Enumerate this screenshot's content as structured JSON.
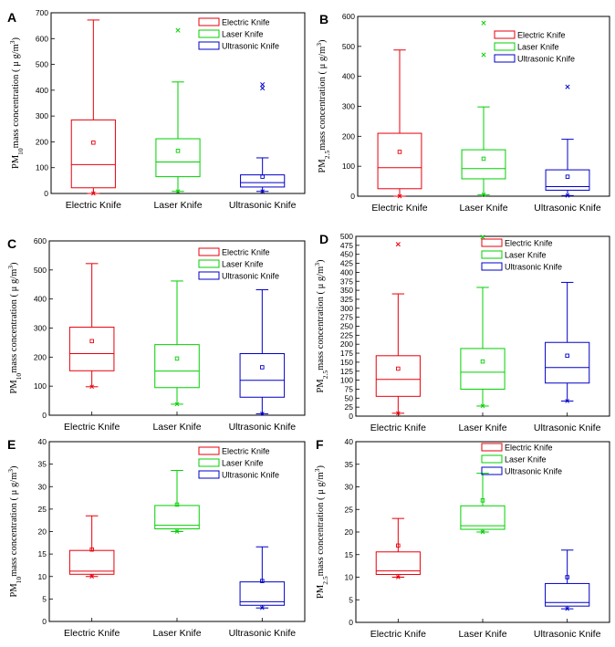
{
  "colors": {
    "Electric Knife": "#e8000b",
    "Laser Knife": "#00d000",
    "Ultrasonic Knife": "#0000c8"
  },
  "chart_data": [
    {
      "type": "box",
      "letter": "A",
      "ylabel": {
        "pre": "PM",
        "sub": "10",
        "post": "mass concentration ( μ g/m",
        "sup": "3",
        "end": ")"
      },
      "ylim": [
        0,
        700
      ],
      "yticks": [
        0,
        100,
        200,
        300,
        400,
        500,
        600,
        700
      ],
      "categories": [
        "Electric Knife",
        "Laser Knife",
        "Ultrasonic Knife"
      ],
      "legend": [
        "Electric Knife",
        "Laser Knife",
        "Ultrasonic Knife"
      ],
      "boxes": [
        {
          "name": "Electric Knife",
          "min": 0,
          "q1": 22,
          "median": 112,
          "q3": 285,
          "max": 672,
          "mean": 197,
          "outliers": []
        },
        {
          "name": "Laser Knife",
          "min": 8,
          "q1": 65,
          "median": 122,
          "q3": 212,
          "max": 432,
          "mean": 165,
          "outliers": [
            632
          ]
        },
        {
          "name": "Ultrasonic Knife",
          "min": 8,
          "q1": 25,
          "median": 42,
          "q3": 72,
          "max": 138,
          "mean": 65,
          "outliers": [
            408,
            422
          ]
        }
      ]
    },
    {
      "type": "box",
      "letter": "B",
      "ylabel": {
        "pre": "PM",
        "sub": "2.5",
        "post": "mass concentration ( μ g/m",
        "sup": "3",
        "end": ")"
      },
      "ylim": [
        0,
        600
      ],
      "yticks": [
        0,
        100,
        200,
        300,
        400,
        500,
        600
      ],
      "categories": [
        "Electric Knife",
        "Laser Knife",
        "Ultrasonic Knife"
      ],
      "legend": [
        "Electric Knife",
        "Laser Knife",
        "Ultrasonic Knife"
      ],
      "boxes": [
        {
          "name": "Electric Knife",
          "min": 0,
          "q1": 25,
          "median": 95,
          "q3": 210,
          "max": 488,
          "mean": 148,
          "outliers": []
        },
        {
          "name": "Laser Knife",
          "min": 5,
          "q1": 58,
          "median": 92,
          "q3": 155,
          "max": 298,
          "mean": 125,
          "outliers": [
            472,
            578
          ]
        },
        {
          "name": "Ultrasonic Knife",
          "min": 2,
          "q1": 20,
          "median": 32,
          "q3": 88,
          "max": 190,
          "mean": 65,
          "outliers": [
            365
          ]
        }
      ]
    },
    {
      "type": "box",
      "letter": "C",
      "ylabel": {
        "pre": "PM",
        "sub": "10",
        "post": "mass concentration ( μ g/m",
        "sup": "3",
        "end": ")"
      },
      "ylim": [
        0,
        600
      ],
      "yticks": [
        0,
        100,
        200,
        300,
        400,
        500,
        600
      ],
      "categories": [
        "Electric Knife",
        "Laser Knife",
        "Ultrasonic Knife"
      ],
      "legend": [
        "Electric Knife",
        "Laser Knife",
        "Ultrasonic Knife"
      ],
      "boxes": [
        {
          "name": "Electric Knife",
          "min": 98,
          "q1": 153,
          "median": 212,
          "q3": 303,
          "max": 522,
          "mean": 255,
          "outliers": []
        },
        {
          "name": "Laser Knife",
          "min": 38,
          "q1": 95,
          "median": 152,
          "q3": 243,
          "max": 462,
          "mean": 195,
          "outliers": []
        },
        {
          "name": "Ultrasonic Knife",
          "min": 5,
          "q1": 62,
          "median": 120,
          "q3": 212,
          "max": 432,
          "mean": 165,
          "outliers": []
        }
      ]
    },
    {
      "type": "box",
      "letter": "D",
      "ylabel": {
        "pre": "PM",
        "sub": "2.5",
        "post": "mass concentration ( μ g/m",
        "sup": "3",
        "end": ")"
      },
      "ylim": [
        0,
        500
      ],
      "yticks": [
        0,
        25,
        50,
        75,
        100,
        125,
        150,
        175,
        200,
        225,
        250,
        275,
        300,
        325,
        350,
        375,
        400,
        425,
        450,
        475,
        500
      ],
      "categories": [
        "Electric Knife",
        "Laser Knife",
        "Ultrasonic Knife"
      ],
      "legend": [
        "Electric Knife",
        "Laser Knife",
        "Ultrasonic Knife"
      ],
      "boxes": [
        {
          "name": "Electric Knife",
          "min": 8,
          "q1": 55,
          "median": 102,
          "q3": 168,
          "max": 340,
          "mean": 132,
          "outliers": [
            478
          ]
        },
        {
          "name": "Laser Knife",
          "min": 28,
          "q1": 75,
          "median": 122,
          "q3": 188,
          "max": 358,
          "mean": 152,
          "outliers": [
            498
          ]
        },
        {
          "name": "Ultrasonic Knife",
          "min": 42,
          "q1": 92,
          "median": 135,
          "q3": 205,
          "max": 372,
          "mean": 168,
          "outliers": []
        }
      ]
    },
    {
      "type": "box",
      "letter": "E",
      "ylabel": {
        "pre": "PM",
        "sub": "10",
        "post": "mass concentration ( μ g/m",
        "sup": "3",
        "end": ")"
      },
      "ylim": [
        0,
        40
      ],
      "yticks": [
        0,
        5,
        10,
        15,
        20,
        25,
        30,
        35,
        40
      ],
      "categories": [
        "Electric Knife",
        "Laser Knife",
        "Ultrasonic Knife"
      ],
      "legend": [
        "Electric Knife",
        "Laser Knife",
        "Ultrasonic Knife"
      ],
      "boxes": [
        {
          "name": "Electric Knife",
          "min": 10,
          "q1": 10.5,
          "median": 11.2,
          "q3": 15.8,
          "max": 23.5,
          "mean": 16,
          "outliers": []
        },
        {
          "name": "Laser Knife",
          "min": 20,
          "q1": 20.6,
          "median": 21.4,
          "q3": 25.8,
          "max": 33.6,
          "mean": 26,
          "outliers": []
        },
        {
          "name": "Ultrasonic Knife",
          "min": 3,
          "q1": 3.6,
          "median": 4.4,
          "q3": 8.8,
          "max": 16.6,
          "mean": 9,
          "outliers": []
        }
      ]
    },
    {
      "type": "box",
      "letter": "F",
      "ylabel": {
        "pre": "PM",
        "sub": "2.5",
        "post": "mass concentration ( μ g/m",
        "sup": "3",
        "end": ")"
      },
      "ylim": [
        0,
        40
      ],
      "yticks": [
        0,
        5,
        10,
        15,
        20,
        25,
        30,
        35,
        40
      ],
      "categories": [
        "Electric Knife",
        "Laser Knife",
        "Ultrasonic Knife"
      ],
      "legend": [
        "Electric Knife",
        "Laser Knife",
        "Ultrasonic Knife"
      ],
      "boxes": [
        {
          "name": "Electric Knife",
          "min": 10,
          "q1": 10.6,
          "median": 11.4,
          "q3": 15.6,
          "max": 23,
          "mean": 17,
          "outliers": []
        },
        {
          "name": "Laser Knife",
          "min": 20,
          "q1": 20.6,
          "median": 21.4,
          "q3": 25.8,
          "max": 33,
          "mean": 27,
          "outliers": []
        },
        {
          "name": "Ultrasonic Knife",
          "min": 3,
          "q1": 3.6,
          "median": 4.4,
          "q3": 8.6,
          "max": 16,
          "mean": 10,
          "outliers": []
        }
      ]
    }
  ]
}
